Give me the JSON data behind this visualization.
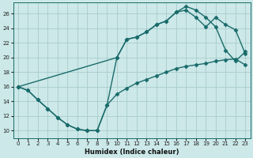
{
  "background_color": "#cce8e8",
  "grid_color": "#aacccc",
  "line_color": "#1a6b6b",
  "marker": "D",
  "markersize": 2.5,
  "linewidth": 1.0,
  "xlabel": "Humidex (Indice chaleur)",
  "xlim": [
    -0.5,
    23.5
  ],
  "ylim": [
    9,
    27.5
  ],
  "xticks": [
    0,
    1,
    2,
    3,
    4,
    5,
    6,
    7,
    8,
    9,
    10,
    11,
    12,
    13,
    14,
    15,
    16,
    17,
    18,
    19,
    20,
    21,
    22,
    23
  ],
  "yticks": [
    10,
    12,
    14,
    16,
    18,
    20,
    22,
    24,
    26
  ],
  "lineA_x": [
    0,
    1,
    2,
    3,
    4,
    5,
    6,
    7,
    8,
    9,
    10,
    11,
    12,
    13,
    14,
    15,
    16,
    17,
    18,
    19,
    20,
    21,
    22,
    23
  ],
  "lineA_y": [
    16.0,
    15.5,
    14.2,
    13.0,
    11.8,
    10.8,
    10.2,
    10.0,
    10.0,
    13.5,
    20.0,
    22.5,
    22.8,
    23.5,
    24.5,
    25.0,
    26.2,
    27.0,
    26.5,
    25.5,
    24.2,
    21.0,
    19.5,
    20.8
  ],
  "lineB_x": [
    0,
    10,
    11,
    12,
    13,
    14,
    15,
    16,
    17,
    18,
    19,
    20,
    21,
    22,
    23
  ],
  "lineB_y": [
    16.0,
    20.0,
    22.5,
    22.8,
    23.5,
    24.5,
    25.0,
    26.2,
    26.5,
    25.5,
    24.2,
    25.5,
    24.5,
    23.8,
    20.5
  ],
  "lineC_x": [
    0,
    1,
    2,
    3,
    4,
    5,
    6,
    7,
    8,
    9,
    10,
    11,
    12,
    13,
    14,
    15,
    16,
    17,
    18,
    19,
    20,
    21,
    22,
    23
  ],
  "lineC_y": [
    16.0,
    15.5,
    14.2,
    13.0,
    11.8,
    10.8,
    10.2,
    10.0,
    10.0,
    13.5,
    15.0,
    15.8,
    16.5,
    17.0,
    17.5,
    18.0,
    18.5,
    18.8,
    19.0,
    19.2,
    19.5,
    19.7,
    19.8,
    19.0
  ]
}
